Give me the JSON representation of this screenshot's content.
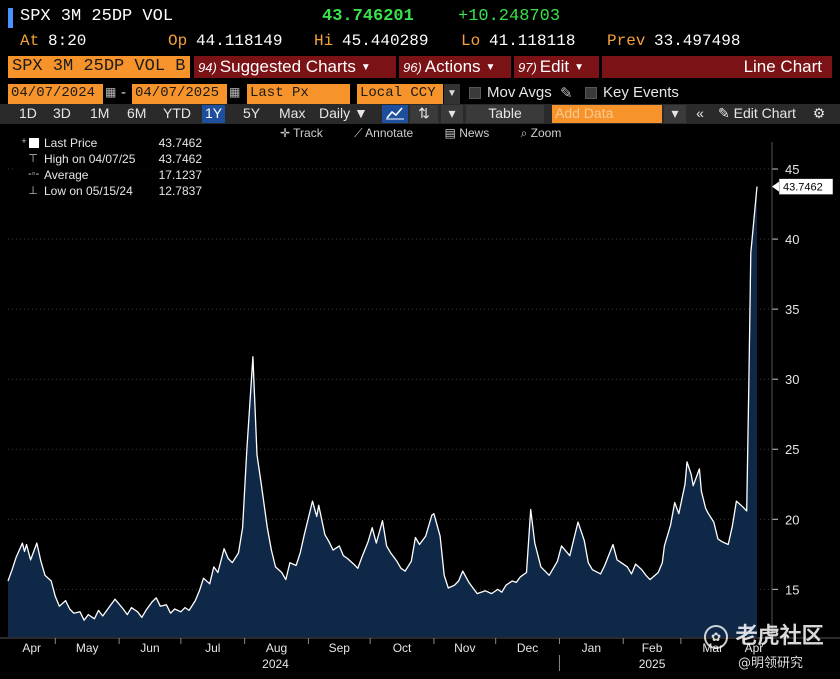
{
  "header": {
    "ticker": "SPX 3M 25DP VOL",
    "last": "43.746201",
    "change": "+10.248703",
    "at_label": "At",
    "at_value": "8:20",
    "op_label": "Op",
    "op_value": "44.118149",
    "hi_label": "Hi",
    "hi_value": "45.440289",
    "lo_label": "Lo",
    "lo_value": "41.118118",
    "prev_label": "Prev",
    "prev_value": "33.497498"
  },
  "function_bar": {
    "security": "SPX 3M 25DP VOL B",
    "menus": [
      {
        "num": "94)",
        "label": "Suggested Charts"
      },
      {
        "num": "96)",
        "label": "Actions"
      },
      {
        "num": "97)",
        "label": "Edit"
      }
    ],
    "chart_type": "Line Chart"
  },
  "controls": {
    "start_date": "04/07/2024",
    "end_date": "04/07/2025",
    "field": "Last Px",
    "currency": "Local CCY",
    "mov_avgs": "Mov Avgs",
    "key_events": "Key Events"
  },
  "periods": [
    "1D",
    "3D",
    "1M",
    "6M",
    "YTD",
    "1Y",
    "5Y",
    "Max"
  ],
  "active_period": "1Y",
  "frequency": "Daily",
  "table_label": "Table",
  "add_data_placeholder": "Add Data",
  "edit_chart": "Edit Chart",
  "tools": [
    "Track",
    "Annotate",
    "News",
    "Zoom"
  ],
  "legend": {
    "rows": [
      {
        "name": "Last Price",
        "value": "43.7462"
      },
      {
        "name": "High on 04/07/25",
        "value": "43.7462"
      },
      {
        "name": "Average",
        "value": "17.1237"
      },
      {
        "name": "Low on 05/15/24",
        "value": "12.7837"
      }
    ]
  },
  "last_price_tag": "43.7462",
  "watermark": {
    "main": "老虎社区",
    "sub": "@明领研究"
  },
  "colors": {
    "accent_orange": "#f6932b",
    "menu_red": "#7b1216",
    "up_green": "#39e14b",
    "line": "#ffffff",
    "fill": "#0f2847"
  },
  "chart_data": {
    "type": "area",
    "x_axis_months": [
      "Apr",
      "May",
      "Jun",
      "Jul",
      "Aug",
      "Sep",
      "Oct",
      "Nov",
      "Dec",
      "Jan",
      "Feb",
      "Mar",
      "Apr"
    ],
    "x_axis_years": [
      "2024",
      "2025"
    ],
    "yticks": [
      15,
      20,
      25,
      30,
      35,
      40,
      45
    ],
    "ylim": [
      11.6,
      46.5
    ],
    "y_axis_side": "right",
    "grid": "horizontal dotted",
    "series": [
      {
        "name": "Last Price",
        "points": [
          [
            "2024-04-08",
            15.6
          ],
          [
            "2024-04-10",
            16.4
          ],
          [
            "2024-04-12",
            17.3
          ],
          [
            "2024-04-15",
            18.3
          ],
          [
            "2024-04-16",
            17.7
          ],
          [
            "2024-04-17",
            18.2
          ],
          [
            "2024-04-19",
            17.1
          ],
          [
            "2024-04-22",
            18.3
          ],
          [
            "2024-04-24",
            17.0
          ],
          [
            "2024-04-26",
            16.0
          ],
          [
            "2024-04-29",
            15.6
          ],
          [
            "2024-05-01",
            14.5
          ],
          [
            "2024-05-03",
            13.8
          ],
          [
            "2024-05-06",
            14.2
          ],
          [
            "2024-05-08",
            13.6
          ],
          [
            "2024-05-10",
            13.3
          ],
          [
            "2024-05-13",
            13.4
          ],
          [
            "2024-05-15",
            12.8
          ],
          [
            "2024-05-17",
            13.2
          ],
          [
            "2024-05-20",
            12.9
          ],
          [
            "2024-05-22",
            13.5
          ],
          [
            "2024-05-24",
            13.1
          ],
          [
            "2024-05-28",
            13.9
          ],
          [
            "2024-05-30",
            14.3
          ],
          [
            "2024-06-03",
            13.6
          ],
          [
            "2024-06-05",
            13.2
          ],
          [
            "2024-06-07",
            13.7
          ],
          [
            "2024-06-10",
            13.4
          ],
          [
            "2024-06-12",
            13.0
          ],
          [
            "2024-06-14",
            13.5
          ],
          [
            "2024-06-17",
            14.1
          ],
          [
            "2024-06-19",
            14.4
          ],
          [
            "2024-06-21",
            13.8
          ],
          [
            "2024-06-24",
            13.9
          ],
          [
            "2024-06-26",
            13.3
          ],
          [
            "2024-06-28",
            13.6
          ],
          [
            "2024-07-01",
            13.4
          ],
          [
            "2024-07-03",
            13.7
          ],
          [
            "2024-07-05",
            13.5
          ],
          [
            "2024-07-08",
            14.2
          ],
          [
            "2024-07-10",
            14.9
          ],
          [
            "2024-07-12",
            15.8
          ],
          [
            "2024-07-15",
            15.4
          ],
          [
            "2024-07-17",
            16.6
          ],
          [
            "2024-07-19",
            16.2
          ],
          [
            "2024-07-22",
            17.9
          ],
          [
            "2024-07-24",
            17.2
          ],
          [
            "2024-07-26",
            16.9
          ],
          [
            "2024-07-29",
            17.6
          ],
          [
            "2024-07-31",
            19.4
          ],
          [
            "2024-08-02",
            24.8
          ],
          [
            "2024-08-05",
            31.6
          ],
          [
            "2024-08-07",
            24.6
          ],
          [
            "2024-08-09",
            22.6
          ],
          [
            "2024-08-12",
            19.4
          ],
          [
            "2024-08-14",
            17.8
          ],
          [
            "2024-08-16",
            16.6
          ],
          [
            "2024-08-19",
            16.2
          ],
          [
            "2024-08-21",
            15.7
          ],
          [
            "2024-08-23",
            16.9
          ],
          [
            "2024-08-26",
            16.7
          ],
          [
            "2024-08-28",
            17.6
          ],
          [
            "2024-08-30",
            18.9
          ],
          [
            "2024-09-03",
            21.3
          ],
          [
            "2024-09-05",
            20.2
          ],
          [
            "2024-09-06",
            21.0
          ],
          [
            "2024-09-09",
            18.9
          ],
          [
            "2024-09-11",
            18.4
          ],
          [
            "2024-09-13",
            17.8
          ],
          [
            "2024-09-16",
            18.1
          ],
          [
            "2024-09-18",
            17.4
          ],
          [
            "2024-09-20",
            17.2
          ],
          [
            "2024-09-23",
            16.8
          ],
          [
            "2024-09-25",
            16.5
          ],
          [
            "2024-09-27",
            17.3
          ],
          [
            "2024-09-30",
            18.4
          ],
          [
            "2024-10-02",
            19.4
          ],
          [
            "2024-10-04",
            18.3
          ],
          [
            "2024-10-07",
            19.9
          ],
          [
            "2024-10-09",
            18.1
          ],
          [
            "2024-10-11",
            17.6
          ],
          [
            "2024-10-14",
            17.0
          ],
          [
            "2024-10-16",
            16.5
          ],
          [
            "2024-10-18",
            16.3
          ],
          [
            "2024-10-21",
            17.0
          ],
          [
            "2024-10-23",
            18.7
          ],
          [
            "2024-10-25",
            18.2
          ],
          [
            "2024-10-28",
            18.8
          ],
          [
            "2024-10-31",
            20.3
          ],
          [
            "2024-11-01",
            20.4
          ],
          [
            "2024-11-04",
            18.8
          ],
          [
            "2024-11-06",
            16.0
          ],
          [
            "2024-11-08",
            15.1
          ],
          [
            "2024-11-11",
            15.3
          ],
          [
            "2024-11-13",
            15.6
          ],
          [
            "2024-11-15",
            16.3
          ],
          [
            "2024-11-18",
            15.5
          ],
          [
            "2024-11-20",
            15.1
          ],
          [
            "2024-11-22",
            14.7
          ],
          [
            "2024-11-26",
            14.9
          ],
          [
            "2024-11-29",
            14.7
          ],
          [
            "2024-12-02",
            15.0
          ],
          [
            "2024-12-04",
            14.8
          ],
          [
            "2024-12-06",
            15.3
          ],
          [
            "2024-12-09",
            15.6
          ],
          [
            "2024-12-11",
            15.5
          ],
          [
            "2024-12-13",
            15.9
          ],
          [
            "2024-12-16",
            16.2
          ],
          [
            "2024-12-18",
            20.7
          ],
          [
            "2024-12-20",
            18.3
          ],
          [
            "2024-12-23",
            16.6
          ],
          [
            "2024-12-27",
            16.0
          ],
          [
            "2024-12-31",
            17.0
          ],
          [
            "2025-01-02",
            18.1
          ],
          [
            "2025-01-06",
            17.4
          ],
          [
            "2025-01-08",
            18.6
          ],
          [
            "2025-01-10",
            19.8
          ],
          [
            "2025-01-13",
            18.5
          ],
          [
            "2025-01-15",
            16.9
          ],
          [
            "2025-01-17",
            16.4
          ],
          [
            "2025-01-21",
            16.1
          ],
          [
            "2025-01-23",
            16.7
          ],
          [
            "2025-01-27",
            18.2
          ],
          [
            "2025-01-29",
            17.1
          ],
          [
            "2025-01-31",
            16.9
          ],
          [
            "2025-02-03",
            16.6
          ],
          [
            "2025-02-05",
            16.1
          ],
          [
            "2025-02-07",
            16.8
          ],
          [
            "2025-02-10",
            16.4
          ],
          [
            "2025-02-12",
            16.0
          ],
          [
            "2025-02-14",
            15.7
          ],
          [
            "2025-02-18",
            16.2
          ],
          [
            "2025-02-20",
            16.9
          ],
          [
            "2025-02-21",
            18.1
          ],
          [
            "2025-02-24",
            19.6
          ],
          [
            "2025-02-26",
            21.2
          ],
          [
            "2025-02-28",
            20.4
          ],
          [
            "2025-03-03",
            22.5
          ],
          [
            "2025-03-04",
            24.1
          ],
          [
            "2025-03-06",
            23.2
          ],
          [
            "2025-03-07",
            22.4
          ],
          [
            "2025-03-10",
            23.6
          ],
          [
            "2025-03-11",
            22.0
          ],
          [
            "2025-03-13",
            20.8
          ],
          [
            "2025-03-14",
            20.5
          ],
          [
            "2025-03-17",
            19.8
          ],
          [
            "2025-03-19",
            18.6
          ],
          [
            "2025-03-21",
            18.4
          ],
          [
            "2025-03-24",
            18.2
          ],
          [
            "2025-03-26",
            19.5
          ],
          [
            "2025-03-28",
            21.3
          ],
          [
            "2025-03-31",
            20.9
          ],
          [
            "2025-04-02",
            20.6
          ],
          [
            "2025-04-03",
            29.5
          ],
          [
            "2025-04-04",
            39.0
          ],
          [
            "2025-04-07",
            43.7462
          ]
        ]
      }
    ]
  }
}
